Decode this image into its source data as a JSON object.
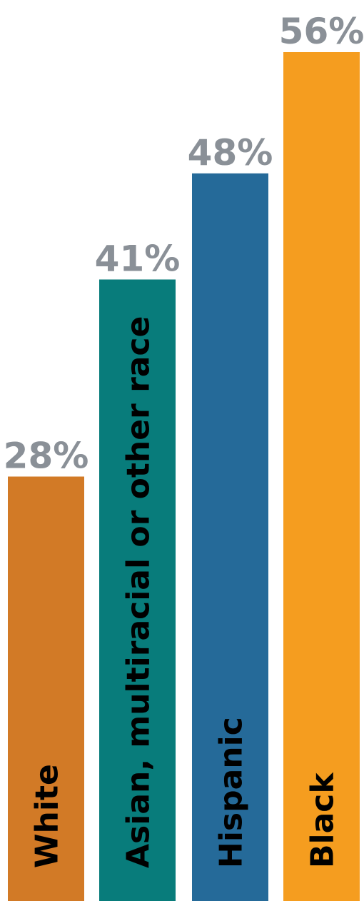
{
  "chart_data": {
    "type": "bar",
    "orientation": "vertical",
    "categories": [
      "White",
      "Asian, multiracial or other race",
      "Hispanic",
      "Black"
    ],
    "values": [
      28,
      41,
      48,
      56
    ],
    "value_labels": [
      "28%",
      "41%",
      "48%",
      "56%"
    ],
    "colors": [
      "#d27a26",
      "#087c7b",
      "#256a99",
      "#f59d1f"
    ],
    "ylim": [
      0,
      56
    ],
    "grid": false,
    "legend": "none"
  }
}
